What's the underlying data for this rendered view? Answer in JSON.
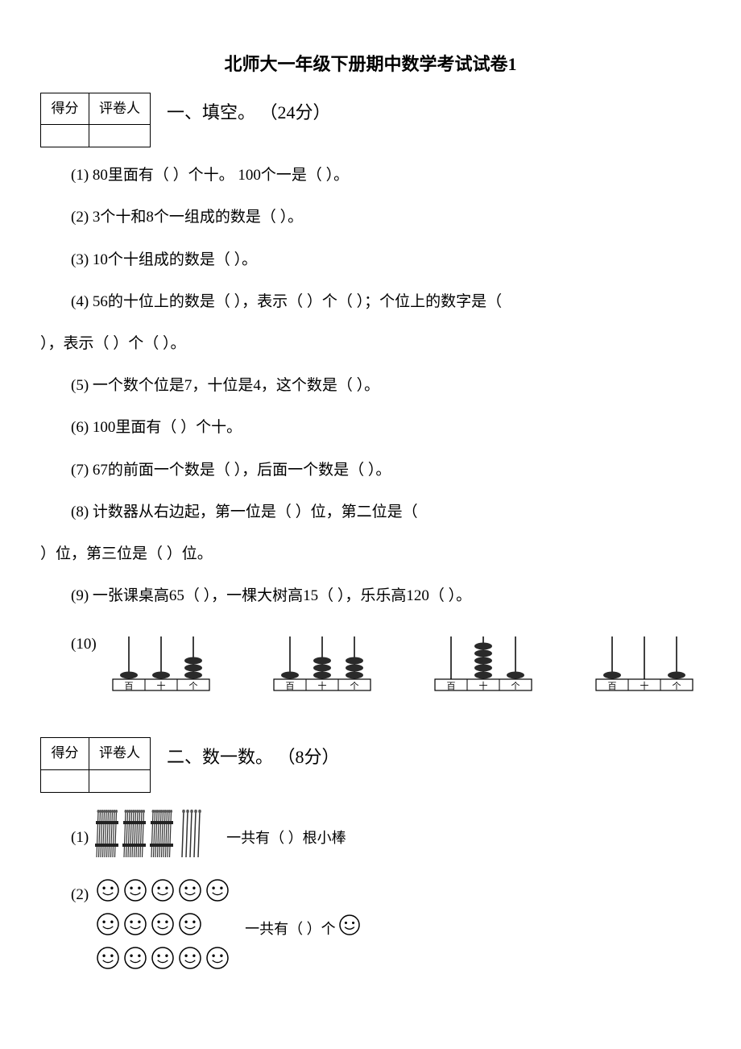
{
  "title": "北师大一年级下册期中数学考试试卷1",
  "score_table": {
    "col1": "得分",
    "col2": "评卷人"
  },
  "sections": {
    "s1": {
      "label": "一、填空。",
      "points": "（24分）"
    },
    "s2": {
      "label": "二、数一数。",
      "points": "（8分）"
    }
  },
  "questions": {
    "q1": "(1) 80里面有（ ）个十。 100个一是（ ）。",
    "q2": "(2) 3个十和8个一组成的数是（ ）。",
    "q3": "(3) 10个十组成的数是（ ）。",
    "q4a": "(4) 56的十位上的数是（ ），表示（ ）个（ ）；个位上的数字是（",
    "q4b": "），表示（ ）个（ ）。",
    "q5": "(5) 一个数个位是7，十位是4，这个数是（ ）。",
    "q6": "(6) 100里面有（ ）个十。",
    "q7": "(7) 67的前面一个数是（ ），后面一个数是（ ）。",
    "q8a": "(8) 计数器从右边起，第一位是（ ）位，第二位是（",
    "q8b": "）位，第三位是（ ）位。",
    "q9": "(9) 一张课桌高65（  ），一棵大树高15（  ），乐乐高120（  ）。",
    "q10": "(10)"
  },
  "abacus": {
    "labels": [
      "百",
      "十",
      "个"
    ],
    "items": [
      {
        "beads": [
          1,
          1,
          3
        ]
      },
      {
        "beads": [
          1,
          3,
          3
        ]
      },
      {
        "beads": [
          0,
          5,
          1
        ]
      },
      {
        "beads": [
          1,
          0,
          1
        ]
      }
    ],
    "bead_color": "#2a2a2a",
    "rod_color": "#000000",
    "base_color": "#000000"
  },
  "count_section": {
    "q1_label": "(1)",
    "q1_text": "一共有（ ）根小棒",
    "q2_label": "(2)",
    "q2_text_a": "一共有（ ）个",
    "sticks": {
      "bundles": 3,
      "loose": 5
    },
    "smileys": {
      "rows": [
        5,
        4,
        5
      ]
    }
  }
}
